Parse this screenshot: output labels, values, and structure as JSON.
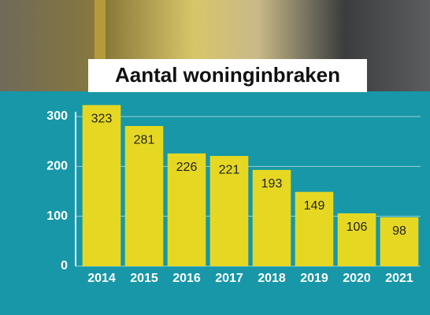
{
  "chart_data": {
    "type": "bar",
    "title": "Aantal woninginbraken",
    "categories": [
      "2014",
      "2015",
      "2016",
      "2017",
      "2018",
      "2019",
      "2020",
      "2021"
    ],
    "values": [
      323,
      281,
      226,
      221,
      193,
      149,
      106,
      98
    ],
    "color": "#e6d822",
    "ylim": [
      0,
      330
    ],
    "yticks": [
      0,
      100,
      200,
      300
    ],
    "grid": true
  }
}
